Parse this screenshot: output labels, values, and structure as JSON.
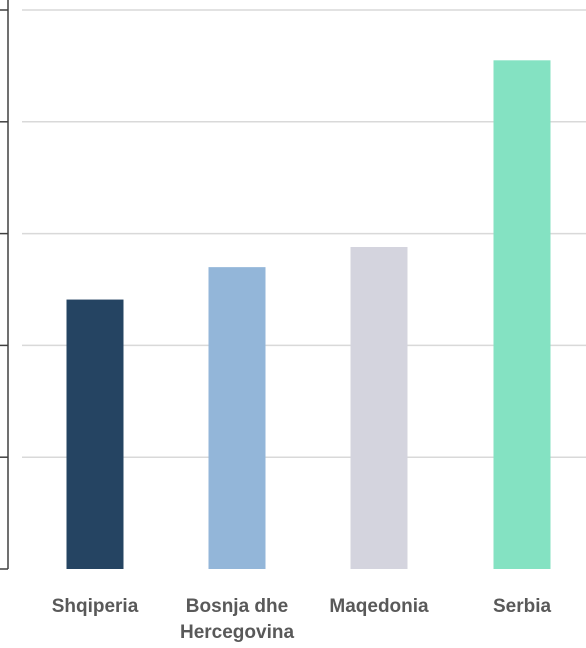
{
  "chart_data": {
    "type": "bar",
    "categories": [
      [
        "Shqiperia"
      ],
      [
        "Bosnja dhe",
        "Hercegovina"
      ],
      [
        "Maqedonia"
      ],
      [
        "Serbia"
      ]
    ],
    "values": [
      2.41,
      2.7,
      2.88,
      4.55
    ],
    "ylim": [
      0,
      5
    ],
    "yticks": [
      0,
      1,
      2,
      3,
      4,
      5
    ],
    "colors": [
      "#254462",
      "#93b6d9",
      "#d4d4de",
      "#84e2c2"
    ],
    "grid": true,
    "legend": "none"
  }
}
